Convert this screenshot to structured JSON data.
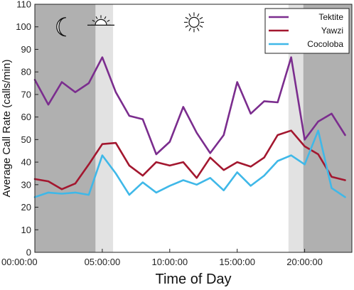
{
  "chart_data": {
    "type": "line",
    "title": "",
    "xlabel": "Time of Day",
    "ylabel": "Average Call Rate (calls/min)",
    "xlim": [
      0,
      23.5
    ],
    "ylim": [
      0,
      110
    ],
    "xticks": [
      0,
      5,
      10,
      15,
      20
    ],
    "xtick_labels": [
      "00:00:00",
      "05:00:00",
      "10:00:00",
      "15:00:00",
      "20:00:00"
    ],
    "yticks": [
      0,
      10,
      20,
      30,
      40,
      50,
      60,
      70,
      80,
      90,
      100,
      110
    ],
    "grid": false,
    "legend_position": "top-right",
    "x": [
      0,
      1,
      2,
      3,
      4,
      5,
      6,
      7,
      8,
      9,
      10,
      11,
      12,
      13,
      14,
      15,
      16,
      17,
      18,
      19,
      20,
      21,
      22,
      23
    ],
    "series": [
      {
        "name": "Tektite",
        "color": "#7b2d8e",
        "values": [
          76.5,
          65.5,
          75.5,
          71,
          75,
          86.5,
          71,
          60.5,
          59,
          43.5,
          49,
          64.5,
          53,
          44,
          52,
          75.5,
          61.5,
          67,
          66.5,
          86.5,
          50,
          58,
          61.5,
          52
        ]
      },
      {
        "name": "Yawzi",
        "color": "#a3172f",
        "values": [
          32.5,
          31.5,
          28,
          30.5,
          39,
          48,
          48.5,
          38.5,
          34,
          40,
          38.5,
          40,
          33,
          42,
          36.5,
          40,
          38,
          42,
          52,
          54,
          47,
          43.5,
          33.5,
          32
        ]
      },
      {
        "name": "Cocoloba",
        "color": "#3fb8e8",
        "values": [
          24.5,
          26.5,
          26,
          26.5,
          25.5,
          43,
          35,
          25.5,
          31,
          26.5,
          29.5,
          32,
          30,
          33,
          27.5,
          35.5,
          29.5,
          34,
          40.5,
          43,
          39,
          54,
          28.5,
          24.5
        ]
      }
    ],
    "shaded_regions": [
      {
        "from": 0,
        "to": 4.5,
        "color": "#b0b0b0"
      },
      {
        "from": 4.5,
        "to": 5.8,
        "color": "#e2e2e2"
      },
      {
        "from": 18.8,
        "to": 19.9,
        "color": "#e2e2e2"
      },
      {
        "from": 19.9,
        "to": 23.5,
        "color": "#b0b0b0"
      }
    ],
    "icons": [
      {
        "name": "moon-icon",
        "x": 2.1,
        "y": 100
      },
      {
        "name": "sunrise-icon",
        "x": 4.9,
        "y": 102
      },
      {
        "name": "sun-icon",
        "x": 11.8,
        "y": 102
      }
    ]
  }
}
